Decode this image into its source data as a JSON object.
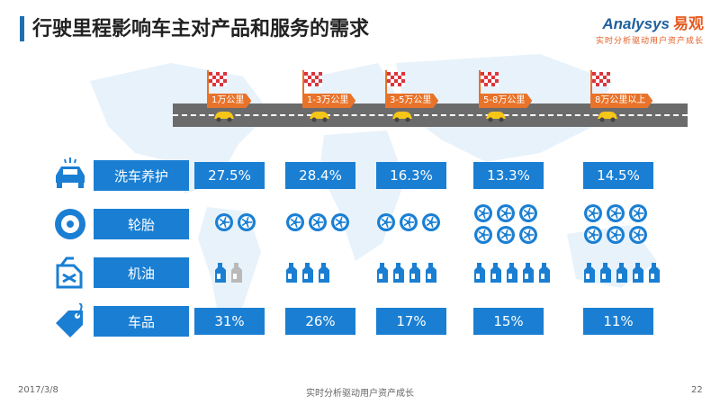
{
  "header": {
    "title": "行驶里程影响车主对产品和服务的需求",
    "logo_text": "Analysys",
    "logo_cn": "易观",
    "logo_tagline": "实时分析驱动用户资产成长"
  },
  "footer": {
    "date": "2017/3/8",
    "center": "实时分析驱动用户资产成长",
    "page": "22"
  },
  "colors": {
    "accent": "#1a7fd3",
    "road": "#6b6b6b",
    "flag_pole": "#e8732a",
    "car": "#f5c518",
    "active_icon": "#1a7fd3",
    "inactive_icon": "#b9b9b9"
  },
  "chart_data": {
    "type": "table",
    "mileage_stages": [
      "1万公里",
      "1-3万公里",
      "3-5万公里",
      "5-8万公里",
      "8万公里以上"
    ],
    "rows": [
      {
        "category": "洗车养护",
        "icon": "car-icon",
        "display": "text",
        "values": [
          "27.5%",
          "28.4%",
          "16.3%",
          "13.3%",
          "14.5%"
        ]
      },
      {
        "category": "轮胎",
        "icon": "tire-icon",
        "display": "tire-count",
        "counts": [
          2,
          3,
          3,
          6,
          6
        ]
      },
      {
        "category": "机油",
        "icon": "oil-can-icon",
        "display": "bottle-count",
        "active": [
          1,
          3,
          4,
          5,
          5
        ],
        "total": [
          2,
          3,
          4,
          5,
          5
        ]
      },
      {
        "category": "车品",
        "icon": "tag-icon",
        "display": "text",
        "values": [
          "31%",
          "26%",
          "17%",
          "15%",
          "11%"
        ]
      }
    ]
  }
}
